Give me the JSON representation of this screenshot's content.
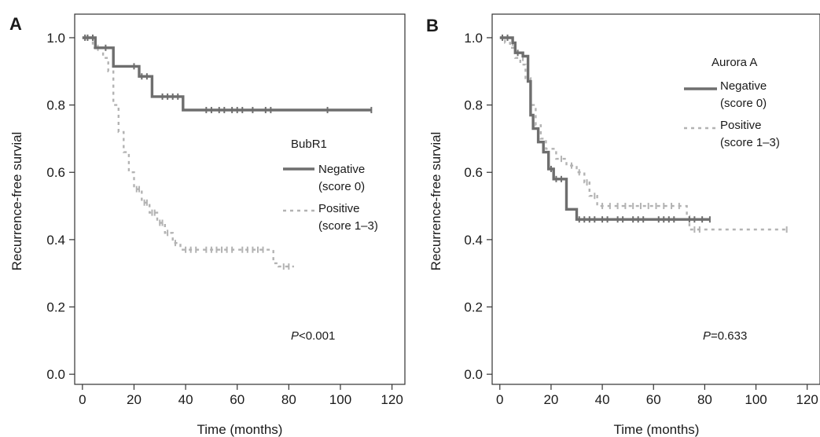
{
  "chart_data": [
    {
      "panel": "A",
      "type": "line",
      "xlabel": "Time (months)",
      "ylabel": "Recurrence-free survial",
      "xlim": [
        -3,
        125
      ],
      "ylim": [
        -0.03,
        1.07
      ],
      "xticks": [
        "0",
        "20",
        "40",
        "60",
        "80",
        "100",
        "120"
      ],
      "xtick_values": [
        0,
        20,
        40,
        60,
        80,
        100,
        120
      ],
      "yticks": [
        "0.0",
        "0.2",
        "0.4",
        "0.6",
        "0.8",
        "1.0"
      ],
      "ytick_values": [
        0,
        0.2,
        0.4,
        0.6,
        0.8,
        1.0
      ],
      "legend_title": "BubR1",
      "p_prefix": "P",
      "p_rest": "<0.001",
      "series": [
        {
          "label_line1": "Negative",
          "label_line2": "(score 0)",
          "color": "#6e6e6e",
          "style": "solid",
          "steps": [
            [
              0,
              1.0
            ],
            [
              5,
              1.0
            ],
            [
              5,
              0.97
            ],
            [
              12,
              0.97
            ],
            [
              12,
              0.915
            ],
            [
              22,
              0.915
            ],
            [
              22,
              0.885
            ],
            [
              27,
              0.885
            ],
            [
              27,
              0.825
            ],
            [
              39,
              0.825
            ],
            [
              39,
              0.785
            ],
            [
              112,
              0.785
            ]
          ],
          "censors": [
            [
              1,
              1.0
            ],
            [
              2,
              1.0
            ],
            [
              4,
              1.0
            ],
            [
              9,
              0.97
            ],
            [
              20,
              0.915
            ],
            [
              23,
              0.885
            ],
            [
              25,
              0.885
            ],
            [
              31,
              0.825
            ],
            [
              33,
              0.825
            ],
            [
              35,
              0.825
            ],
            [
              37,
              0.825
            ],
            [
              48,
              0.785
            ],
            [
              50,
              0.785
            ],
            [
              53,
              0.785
            ],
            [
              55,
              0.785
            ],
            [
              58,
              0.785
            ],
            [
              60,
              0.785
            ],
            [
              62,
              0.785
            ],
            [
              66,
              0.785
            ],
            [
              71,
              0.785
            ],
            [
              73,
              0.785
            ],
            [
              95,
              0.785
            ],
            [
              112,
              0.785
            ]
          ]
        },
        {
          "label_line1": "Positive",
          "label_line2": "(score 1–3)",
          "color": "#b3b3b3",
          "style": "dashed",
          "steps": [
            [
              0,
              1.0
            ],
            [
              4,
              1.0
            ],
            [
              4,
              0.97
            ],
            [
              8,
              0.97
            ],
            [
              8,
              0.94
            ],
            [
              10,
              0.94
            ],
            [
              10,
              0.9
            ],
            [
              12,
              0.9
            ],
            [
              12,
              0.8
            ],
            [
              14,
              0.8
            ],
            [
              14,
              0.72
            ],
            [
              16,
              0.72
            ],
            [
              16,
              0.66
            ],
            [
              18,
              0.66
            ],
            [
              18,
              0.6
            ],
            [
              20,
              0.6
            ],
            [
              20,
              0.55
            ],
            [
              23,
              0.55
            ],
            [
              23,
              0.51
            ],
            [
              26,
              0.51
            ],
            [
              26,
              0.48
            ],
            [
              29,
              0.48
            ],
            [
              29,
              0.45
            ],
            [
              32,
              0.45
            ],
            [
              32,
              0.42
            ],
            [
              35,
              0.42
            ],
            [
              35,
              0.39
            ],
            [
              38,
              0.39
            ],
            [
              38,
              0.37
            ],
            [
              74,
              0.37
            ],
            [
              74,
              0.33
            ],
            [
              76,
              0.33
            ],
            [
              76,
              0.32
            ],
            [
              82,
              0.32
            ]
          ],
          "censors": [
            [
              2,
              1.0
            ],
            [
              6,
              0.97
            ],
            [
              21,
              0.55
            ],
            [
              22,
              0.55
            ],
            [
              24,
              0.51
            ],
            [
              25,
              0.51
            ],
            [
              27,
              0.48
            ],
            [
              28,
              0.48
            ],
            [
              30,
              0.45
            ],
            [
              31,
              0.45
            ],
            [
              33,
              0.42
            ],
            [
              36,
              0.39
            ],
            [
              40,
              0.37
            ],
            [
              42,
              0.37
            ],
            [
              44,
              0.37
            ],
            [
              48,
              0.37
            ],
            [
              50,
              0.37
            ],
            [
              52,
              0.37
            ],
            [
              54,
              0.37
            ],
            [
              56,
              0.37
            ],
            [
              58,
              0.37
            ],
            [
              62,
              0.37
            ],
            [
              64,
              0.37
            ],
            [
              66,
              0.37
            ],
            [
              68,
              0.37
            ],
            [
              70,
              0.37
            ],
            [
              78,
              0.32
            ],
            [
              80,
              0.32
            ]
          ]
        }
      ]
    },
    {
      "panel": "B",
      "type": "line",
      "xlabel": "Time (months)",
      "ylabel": "Recurrence-free survial",
      "xlim": [
        -3,
        125
      ],
      "ylim": [
        -0.03,
        1.07
      ],
      "xticks": [
        "0",
        "20",
        "40",
        "60",
        "80",
        "100",
        "120"
      ],
      "xtick_values": [
        0,
        20,
        40,
        60,
        80,
        100,
        120
      ],
      "yticks": [
        "0.0",
        "0.2",
        "0.4",
        "0.6",
        "0.8",
        "1.0"
      ],
      "ytick_values": [
        0,
        0.2,
        0.4,
        0.6,
        0.8,
        1.0
      ],
      "legend_title": "Aurora A",
      "p_prefix": "P",
      "p_rest": "=0.633",
      "series": [
        {
          "label_line1": "Negative",
          "label_line2": "(score 0)",
          "color": "#6e6e6e",
          "style": "solid",
          "steps": [
            [
              0,
              1.0
            ],
            [
              5,
              1.0
            ],
            [
              5,
              0.985
            ],
            [
              6,
              0.985
            ],
            [
              6,
              0.955
            ],
            [
              9,
              0.955
            ],
            [
              9,
              0.945
            ],
            [
              11,
              0.945
            ],
            [
              11,
              0.87
            ],
            [
              12,
              0.87
            ],
            [
              12,
              0.77
            ],
            [
              13,
              0.77
            ],
            [
              13,
              0.73
            ],
            [
              15,
              0.73
            ],
            [
              15,
              0.69
            ],
            [
              17,
              0.69
            ],
            [
              17,
              0.66
            ],
            [
              19,
              0.66
            ],
            [
              19,
              0.61
            ],
            [
              21,
              0.61
            ],
            [
              21,
              0.58
            ],
            [
              26,
              0.58
            ],
            [
              26,
              0.49
            ],
            [
              30,
              0.49
            ],
            [
              30,
              0.46
            ],
            [
              82,
              0.46
            ]
          ],
          "censors": [
            [
              1,
              1.0
            ],
            [
              3,
              1.0
            ],
            [
              7,
              0.955
            ],
            [
              20,
              0.61
            ],
            [
              22,
              0.58
            ],
            [
              24,
              0.58
            ],
            [
              31,
              0.46
            ],
            [
              33,
              0.46
            ],
            [
              35,
              0.46
            ],
            [
              37,
              0.46
            ],
            [
              40,
              0.46
            ],
            [
              42,
              0.46
            ],
            [
              46,
              0.46
            ],
            [
              48,
              0.46
            ],
            [
              52,
              0.46
            ],
            [
              54,
              0.46
            ],
            [
              56,
              0.46
            ],
            [
              62,
              0.46
            ],
            [
              64,
              0.46
            ],
            [
              66,
              0.46
            ],
            [
              68,
              0.46
            ],
            [
              74,
              0.46
            ],
            [
              76,
              0.46
            ],
            [
              79,
              0.46
            ],
            [
              82,
              0.46
            ]
          ]
        },
        {
          "label_line1": "Positive",
          "label_line2": "(score 1–3)",
          "color": "#b3b3b3",
          "style": "dashed",
          "steps": [
            [
              0,
              1.0
            ],
            [
              2,
              1.0
            ],
            [
              2,
              0.985
            ],
            [
              4,
              0.985
            ],
            [
              4,
              0.97
            ],
            [
              6,
              0.97
            ],
            [
              6,
              0.94
            ],
            [
              8,
              0.94
            ],
            [
              8,
              0.92
            ],
            [
              10,
              0.92
            ],
            [
              10,
              0.88
            ],
            [
              12,
              0.88
            ],
            [
              12,
              0.8
            ],
            [
              14,
              0.8
            ],
            [
              14,
              0.74
            ],
            [
              16,
              0.74
            ],
            [
              16,
              0.7
            ],
            [
              18,
              0.7
            ],
            [
              18,
              0.67
            ],
            [
              22,
              0.67
            ],
            [
              22,
              0.64
            ],
            [
              26,
              0.64
            ],
            [
              26,
              0.62
            ],
            [
              30,
              0.62
            ],
            [
              30,
              0.6
            ],
            [
              33,
              0.6
            ],
            [
              33,
              0.57
            ],
            [
              35,
              0.57
            ],
            [
              35,
              0.53
            ],
            [
              38,
              0.53
            ],
            [
              38,
              0.5
            ],
            [
              73,
              0.5
            ],
            [
              73,
              0.47
            ],
            [
              74,
              0.47
            ],
            [
              74,
              0.43
            ],
            [
              113,
              0.43
            ]
          ],
          "censors": [
            [
              5,
              0.985
            ],
            [
              9,
              0.94
            ],
            [
              24,
              0.64
            ],
            [
              28,
              0.62
            ],
            [
              31,
              0.6
            ],
            [
              34,
              0.57
            ],
            [
              37,
              0.53
            ],
            [
              40,
              0.5
            ],
            [
              43,
              0.5
            ],
            [
              46,
              0.5
            ],
            [
              49,
              0.5
            ],
            [
              52,
              0.5
            ],
            [
              55,
              0.5
            ],
            [
              58,
              0.5
            ],
            [
              61,
              0.5
            ],
            [
              64,
              0.5
            ],
            [
              67,
              0.5
            ],
            [
              70,
              0.5
            ],
            [
              76,
              0.43
            ],
            [
              78,
              0.43
            ],
            [
              112,
              0.43
            ]
          ]
        }
      ]
    }
  ]
}
